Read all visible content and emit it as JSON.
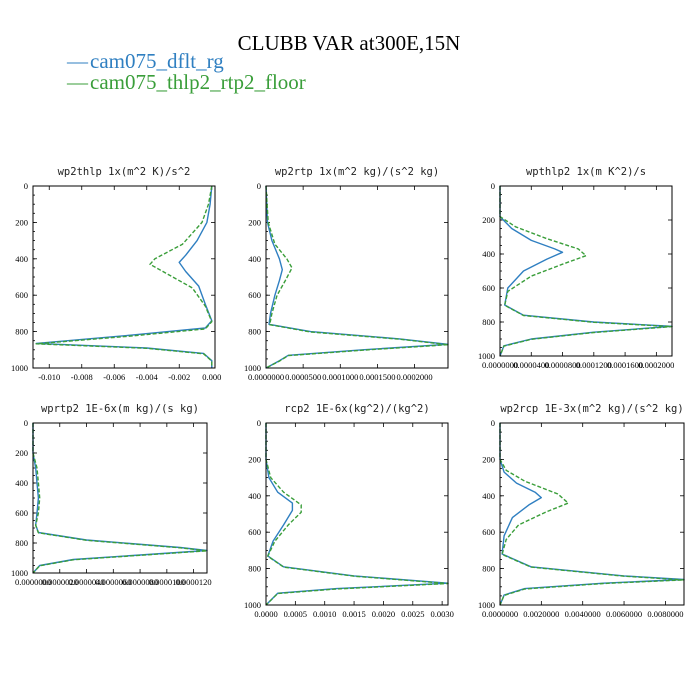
{
  "figure": {
    "title": "CLUBB VAR at300E,15N",
    "legend": [
      {
        "glyph": "—",
        "label": "cam075_dflt_rg",
        "color": "#2f7fc1"
      },
      {
        "glyph": "—",
        "label": "cam075_thlp2_rtp2_floor",
        "color": "#3a9e3a"
      }
    ]
  },
  "chart_data": [
    {
      "type": "line",
      "title": "wp2thlp   1x(m^2 K)/s^2",
      "ylim": [
        1000,
        0
      ],
      "xlim": [
        -0.011,
        0.0002
      ],
      "yticks": [
        "0",
        "200",
        "400",
        "600",
        "800",
        "1000"
      ],
      "xticks": [
        "-0.010",
        "-0.008",
        "-0.006",
        "-0.004",
        "-0.002",
        "0.000"
      ],
      "series": [
        {
          "name": "cam075_dflt_rg",
          "color": "#2f7fc1",
          "dashed": false,
          "points": [
            [
              0.0,
              0
            ],
            [
              -0.0001,
              100
            ],
            [
              -0.0003,
              200
            ],
            [
              -0.0009,
              300
            ],
            [
              -0.0016,
              380
            ],
            [
              -0.002,
              420
            ],
            [
              -0.0016,
              470
            ],
            [
              -0.0008,
              550
            ],
            [
              -0.0004,
              650
            ],
            [
              0.0,
              740
            ],
            [
              -0.0004,
              780
            ],
            [
              -0.005,
              820
            ],
            [
              -0.0108,
              865
            ],
            [
              -0.004,
              890
            ],
            [
              -0.0005,
              920
            ],
            [
              0.0,
              960
            ],
            [
              0.0,
              1000
            ]
          ]
        },
        {
          "name": "cam075_thlp2_rtp2_floor",
          "color": "#3a9e3a",
          "dashed": true,
          "points": [
            [
              0.0,
              0
            ],
            [
              -0.0002,
              100
            ],
            [
              -0.0006,
              200
            ],
            [
              -0.0018,
              320
            ],
            [
              -0.0035,
              400
            ],
            [
              -0.0038,
              430
            ],
            [
              -0.0028,
              480
            ],
            [
              -0.0012,
              560
            ],
            [
              -0.0004,
              660
            ],
            [
              0.0,
              745
            ],
            [
              -0.0004,
              785
            ],
            [
              -0.005,
              825
            ],
            [
              -0.0108,
              867
            ],
            [
              -0.004,
              892
            ],
            [
              -0.0005,
              922
            ],
            [
              0.0,
              962
            ],
            [
              0.0,
              1000
            ]
          ]
        }
      ]
    },
    {
      "type": "line",
      "title": "wp2rtp   1x(m^2 kg)/(s^2 kg)",
      "ylim": [
        1000,
        0
      ],
      "xlim": [
        0.0,
        0.000245
      ],
      "yticks": [
        "0",
        "200",
        "400",
        "600",
        "800",
        "1000"
      ],
      "xticks": [
        "0.0000000",
        "0.0000500",
        "0.0001000",
        "0.0001500",
        "0.0002000"
      ],
      "series": [
        {
          "name": "cam075_dflt_rg",
          "color": "#2f7fc1",
          "dashed": false,
          "points": [
            [
              0.0,
              0
            ],
            [
              2e-06,
              200
            ],
            [
              8e-06,
              300
            ],
            [
              1.8e-05,
              400
            ],
            [
              2.2e-05,
              460
            ],
            [
              1.8e-05,
              520
            ],
            [
              1.2e-05,
              600
            ],
            [
              6e-06,
              700
            ],
            [
              4e-06,
              760
            ],
            [
              6e-05,
              800
            ],
            [
              0.00018,
              840
            ],
            [
              0.000245,
              870
            ],
            [
              0.00013,
              900
            ],
            [
              3e-05,
              930
            ],
            [
              1.8e-05,
              960
            ],
            [
              0.0,
              1000
            ]
          ]
        },
        {
          "name": "cam075_thlp2_rtp2_floor",
          "color": "#3a9e3a",
          "dashed": true,
          "points": [
            [
              0.0,
              0
            ],
            [
              3e-06,
              200
            ],
            [
              1.2e-05,
              320
            ],
            [
              2.8e-05,
              400
            ],
            [
              3.5e-05,
              450
            ],
            [
              2.6e-05,
              520
            ],
            [
              1.5e-05,
              600
            ],
            [
              8e-06,
              700
            ],
            [
              5e-06,
              762
            ],
            [
              6e-05,
              802
            ],
            [
              0.00018,
              842
            ],
            [
              0.000245,
              872
            ],
            [
              0.00013,
              902
            ],
            [
              3e-05,
              932
            ],
            [
              1.8e-05,
              962
            ],
            [
              0.0,
              1000
            ]
          ]
        }
      ]
    },
    {
      "type": "line",
      "title": "wpthlp2   1x(m K^2)/s",
      "ylim": [
        1000,
        0
      ],
      "xlim": [
        0.0,
        0.00022
      ],
      "yticks": [
        "0",
        "200",
        "400",
        "600",
        "800",
        "1000"
      ],
      "xticks": [
        "0.0000000",
        "0.0000400",
        "0.0000800",
        "0.0001200",
        "0.0001600",
        "0.0002000"
      ],
      "series": [
        {
          "name": "cam075_dflt_rg",
          "color": "#2f7fc1",
          "dashed": false,
          "points": [
            [
              0.0,
              0
            ],
            [
              0.0,
              180
            ],
            [
              1.5e-05,
              250
            ],
            [
              4e-05,
              320
            ],
            [
              7e-05,
              370
            ],
            [
              8e-05,
              390
            ],
            [
              6e-05,
              430
            ],
            [
              3e-05,
              500
            ],
            [
              1e-05,
              600
            ],
            [
              6e-06,
              700
            ],
            [
              3e-05,
              760
            ],
            [
              0.00012,
              800
            ],
            [
              0.00022,
              825
            ],
            [
              0.00012,
              860
            ],
            [
              4e-05,
              900
            ],
            [
              5e-06,
              940
            ],
            [
              0.0,
              1000
            ]
          ]
        },
        {
          "name": "cam075_thlp2_rtp2_floor",
          "color": "#3a9e3a",
          "dashed": true,
          "points": [
            [
              0.0,
              0
            ],
            [
              0.0,
              180
            ],
            [
              2e-05,
              240
            ],
            [
              6e-05,
              310
            ],
            [
              0.0001,
              370
            ],
            [
              0.00011,
              410
            ],
            [
              8e-05,
              460
            ],
            [
              4e-05,
              530
            ],
            [
              1e-05,
              620
            ],
            [
              6e-06,
              702
            ],
            [
              3e-05,
              762
            ],
            [
              0.00012,
              802
            ],
            [
              0.00022,
              827
            ],
            [
              0.00012,
              862
            ],
            [
              4e-05,
              902
            ],
            [
              5e-06,
              942
            ],
            [
              0.0,
              1000
            ]
          ]
        }
      ]
    },
    {
      "type": "line",
      "title": "wprtp2   1E-6x(m kg)/(s kg)",
      "ylim": [
        1000,
        0
      ],
      "xlim": [
        0.0,
        1.3e-05
      ],
      "yticks": [
        "0",
        "200",
        "400",
        "600",
        "800",
        "1000"
      ],
      "xticks": [
        "0.0000000",
        "0.0000020",
        "0.0000040",
        "0.0000060",
        "0.0000080",
        "0.0000100",
        "0.0000120"
      ],
      "series": [
        {
          "name": "cam075_dflt_rg",
          "color": "#2f7fc1",
          "dashed": false,
          "points": [
            [
              0.0,
              0
            ],
            [
              0.0,
              200
            ],
            [
              2e-07,
              300
            ],
            [
              3e-07,
              400
            ],
            [
              4e-07,
              500
            ],
            [
              3e-07,
              600
            ],
            [
              2e-07,
              680
            ],
            [
              4e-07,
              730
            ],
            [
              4e-06,
              780
            ],
            [
              1.1e-05,
              830
            ],
            [
              1.3e-05,
              850
            ],
            [
              8e-06,
              880
            ],
            [
              3e-06,
              910
            ],
            [
              5e-07,
              950
            ],
            [
              0.0,
              1000
            ]
          ]
        },
        {
          "name": "cam075_thlp2_rtp2_floor",
          "color": "#3a9e3a",
          "dashed": true,
          "points": [
            [
              0.0,
              0
            ],
            [
              0.0,
              200
            ],
            [
              3e-07,
              300
            ],
            [
              4e-07,
              400
            ],
            [
              5e-07,
              500
            ],
            [
              4e-07,
              600
            ],
            [
              2e-07,
              682
            ],
            [
              4e-07,
              732
            ],
            [
              4e-06,
              782
            ],
            [
              1.1e-05,
              832
            ],
            [
              1.3e-05,
              852
            ],
            [
              8e-06,
              882
            ],
            [
              3e-06,
              912
            ],
            [
              5e-07,
              952
            ],
            [
              0.0,
              1000
            ]
          ]
        }
      ]
    },
    {
      "type": "line",
      "title": "rcp2   1E-6x(kg^2)/(kg^2)",
      "ylim": [
        1000,
        0
      ],
      "xlim": [
        0.0,
        0.0031
      ],
      "yticks": [
        "0",
        "200",
        "400",
        "600",
        "800",
        "1000"
      ],
      "xticks": [
        "0.0000",
        "0.0005",
        "0.0010",
        "0.0015",
        "0.0020",
        "0.0025",
        "0.0030"
      ],
      "series": [
        {
          "name": "cam075_dflt_rg",
          "color": "#2f7fc1",
          "dashed": false,
          "points": [
            [
              0.0,
              0
            ],
            [
              0.0,
              200
            ],
            [
              5e-05,
              300
            ],
            [
              0.0002,
              380
            ],
            [
              0.00045,
              440
            ],
            [
              0.00045,
              480
            ],
            [
              0.0003,
              560
            ],
            [
              0.00012,
              650
            ],
            [
              3e-05,
              730
            ],
            [
              0.0003,
              790
            ],
            [
              0.0015,
              840
            ],
            [
              0.0031,
              880
            ],
            [
              0.0012,
              910
            ],
            [
              0.0002,
              935
            ],
            [
              0.0,
              1000
            ]
          ]
        },
        {
          "name": "cam075_thlp2_rtp2_floor",
          "color": "#3a9e3a",
          "dashed": true,
          "points": [
            [
              0.0,
              0
            ],
            [
              0.0,
              200
            ],
            [
              8e-05,
              300
            ],
            [
              0.0003,
              380
            ],
            [
              0.0006,
              450
            ],
            [
              0.0006,
              490
            ],
            [
              0.00038,
              560
            ],
            [
              0.00015,
              650
            ],
            [
              3e-05,
              732
            ],
            [
              0.0003,
              792
            ],
            [
              0.0015,
              842
            ],
            [
              0.0031,
              882
            ],
            [
              0.0012,
              912
            ],
            [
              0.0002,
              937
            ],
            [
              0.0,
              1000
            ]
          ]
        }
      ]
    },
    {
      "type": "line",
      "title": "wp2rcp   1E-3x(m^2 kg)/(s^2 kg)",
      "ylim": [
        1000,
        0
      ],
      "xlim": [
        0.0,
        0.0089
      ],
      "yticks": [
        "0",
        "200",
        "400",
        "600",
        "800",
        "1000"
      ],
      "xticks": [
        "0.0000000",
        "0.0020000",
        "0.0040000",
        "0.0060000",
        "0.0080000"
      ],
      "series": [
        {
          "name": "cam075_dflt_rg",
          "color": "#2f7fc1",
          "dashed": false,
          "points": [
            [
              0.0,
              0
            ],
            [
              0.0,
              200
            ],
            [
              0.0002,
              270
            ],
            [
              0.0008,
              330
            ],
            [
              0.0017,
              380
            ],
            [
              0.002,
              410
            ],
            [
              0.0014,
              450
            ],
            [
              0.0006,
              520
            ],
            [
              0.0002,
              620
            ],
            [
              0.0001,
              720
            ],
            [
              0.0015,
              790
            ],
            [
              0.006,
              840
            ],
            [
              0.0089,
              860
            ],
            [
              0.005,
              880
            ],
            [
              0.0012,
              910
            ],
            [
              0.0002,
              945
            ],
            [
              0.0,
              1000
            ]
          ]
        },
        {
          "name": "cam075_thlp2_rtp2_floor",
          "color": "#3a9e3a",
          "dashed": true,
          "points": [
            [
              0.0,
              0
            ],
            [
              0.0,
              200
            ],
            [
              0.0003,
              260
            ],
            [
              0.0012,
              320
            ],
            [
              0.0028,
              390
            ],
            [
              0.0033,
              440
            ],
            [
              0.0022,
              490
            ],
            [
              0.0009,
              560
            ],
            [
              0.0003,
              640
            ],
            [
              0.0001,
              722
            ],
            [
              0.0015,
              792
            ],
            [
              0.006,
              842
            ],
            [
              0.0089,
              862
            ],
            [
              0.005,
              882
            ],
            [
              0.0012,
              912
            ],
            [
              0.0002,
              947
            ],
            [
              0.0,
              1000
            ]
          ]
        }
      ]
    }
  ]
}
